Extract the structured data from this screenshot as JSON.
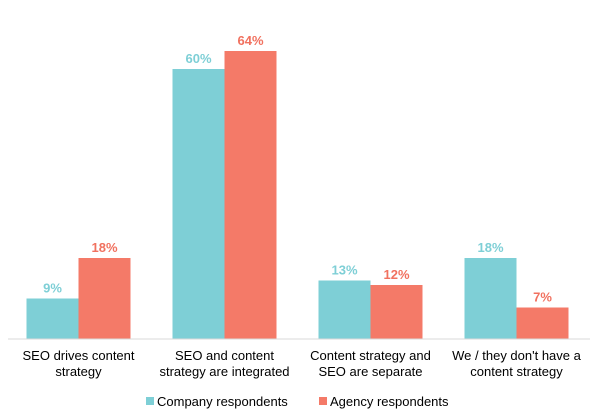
{
  "chart_data": {
    "type": "bar",
    "title": "",
    "xlabel": "",
    "ylabel": "",
    "ylim": [
      0,
      70
    ],
    "grid": false,
    "legend": "bottom",
    "categories": [
      [
        "SEO drives content",
        "strategy"
      ],
      [
        "SEO and content",
        "strategy are integrated"
      ],
      [
        "Content strategy and",
        "SEO are separate"
      ],
      [
        "We / they don't have a",
        "content strategy"
      ]
    ],
    "series": [
      {
        "name": "Company respondents",
        "color": "#7ecfd6",
        "label_color": "#7ecfd6",
        "values": [
          9,
          60,
          13,
          18
        ],
        "labels": [
          "9%",
          "60%",
          "13%",
          "18%"
        ]
      },
      {
        "name": "Agency respondents",
        "color": "#f47a68",
        "label_color": "#f1715f",
        "values": [
          18,
          64,
          12,
          7
        ],
        "labels": [
          "18%",
          "64%",
          "12%",
          "7%"
        ]
      }
    ]
  }
}
